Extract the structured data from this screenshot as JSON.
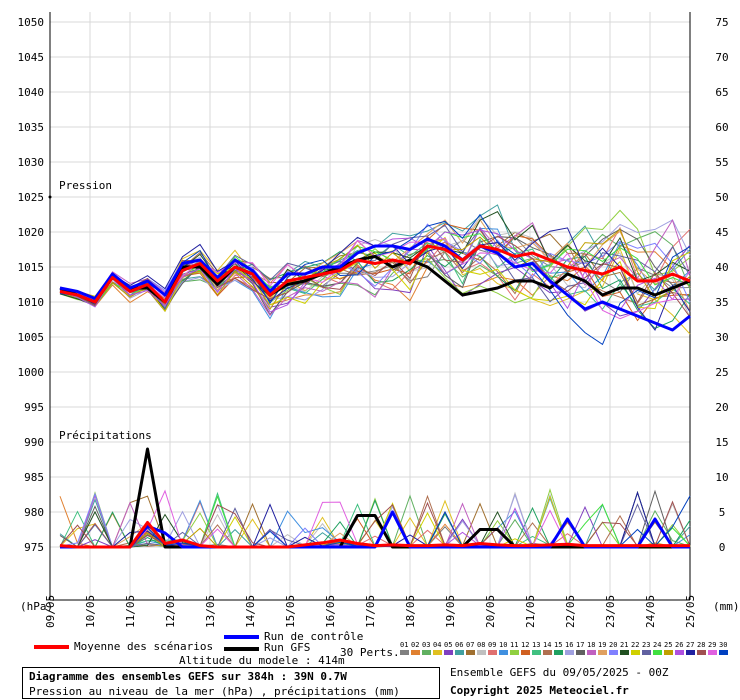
{
  "chart_data": {
    "type": "line",
    "x_tick_labels": [
      "09/05",
      "10/05",
      "11/05",
      "12/05",
      "13/05",
      "14/05",
      "15/05",
      "16/05",
      "17/05",
      "18/05",
      "19/05",
      "20/05",
      "21/05",
      "22/05",
      "23/05",
      "24/05",
      "25/05"
    ],
    "left_axis": {
      "label": "(hPa)",
      "ticks": [
        975,
        980,
        985,
        990,
        995,
        1000,
        1005,
        1010,
        1015,
        1020,
        1025,
        1030,
        1035,
        1040,
        1045,
        1050
      ]
    },
    "right_axis": {
      "label": "(mm)",
      "ticks": [
        0,
        5,
        10,
        15,
        20,
        25,
        30,
        35,
        40,
        45,
        50,
        55,
        60,
        65,
        70,
        75
      ]
    },
    "grid": true,
    "annotations": [
      "Pression",
      "Précipitations"
    ],
    "series": [
      {
        "name": "Moyenne des scénarios",
        "color": "#ff0000",
        "panel": "pressure",
        "values": [
          1011.5,
          1011,
          1010,
          1013.5,
          1011.5,
          1012.5,
          1010,
          1014.5,
          1015.5,
          1013,
          1015,
          1014,
          1011,
          1013,
          1013.5,
          1014,
          1014.5,
          1016,
          1015.5,
          1016,
          1015.5,
          1018,
          1017.5,
          1016,
          1018,
          1017.5,
          1016.5,
          1017,
          1016,
          1015,
          1014.5,
          1014,
          1015,
          1013,
          1013,
          1014,
          1013
        ]
      },
      {
        "name": "Run de contrôle",
        "color": "#0000ff",
        "panel": "pressure",
        "values": [
          1012,
          1011.5,
          1010.5,
          1014,
          1012,
          1013,
          1011,
          1015.5,
          1016,
          1013.5,
          1016,
          1014.5,
          1011.5,
          1014,
          1014,
          1015,
          1015,
          1017,
          1018,
          1018,
          1017.5,
          1019,
          1018,
          1016,
          1018,
          1017,
          1015,
          1015.5,
          1013,
          1011,
          1009,
          1010,
          1009,
          1008,
          1007,
          1006,
          1008
        ]
      },
      {
        "name": "Run GFS",
        "color": "#000000",
        "panel": "pressure",
        "values": [
          1012,
          1011,
          1010,
          1013.5,
          1012,
          1012,
          1010,
          1015,
          1015,
          1012.5,
          1015,
          1014,
          1011,
          1012.5,
          1013,
          1014,
          1015,
          1016,
          1016.5,
          1015,
          1016,
          1015,
          1013,
          1011,
          1011.5,
          1012,
          1013,
          1013,
          1012,
          1014,
          1013,
          1011,
          1012,
          1012,
          1011,
          1012,
          1013
        ]
      },
      {
        "name": "Moyenne des scénarios (précipitations)",
        "color": "#ff0000",
        "panel": "precip",
        "values": [
          0.2,
          0,
          0,
          0,
          0,
          3.5,
          0.5,
          1,
          0.2,
          0,
          0,
          0,
          0,
          0,
          0.3,
          0.6,
          1,
          0.5,
          0.2,
          0.3,
          0.2,
          0.2,
          0.3,
          0.2,
          0.5,
          0.3,
          0.2,
          0.2,
          0.3,
          0.4,
          0.2,
          0.2,
          0.2,
          0.2,
          0.2,
          0.2,
          0.2
        ]
      },
      {
        "name": "Run de contrôle (précipitations)",
        "color": "#0000ff",
        "panel": "precip",
        "values": [
          0,
          0,
          0,
          0,
          0,
          3,
          2,
          0,
          0,
          0,
          0,
          0,
          0,
          0,
          0,
          0,
          0,
          0,
          0,
          5,
          0,
          0,
          0,
          0,
          0,
          0,
          0,
          0,
          0,
          4,
          0,
          0,
          0,
          0,
          4,
          0,
          0
        ]
      },
      {
        "name": "Run GFS (précipitations)",
        "color": "#000000",
        "panel": "precip",
        "values": [
          0,
          0,
          0,
          0,
          0,
          14,
          0,
          0,
          0,
          0,
          0,
          0,
          0,
          0,
          0,
          0,
          0,
          4.5,
          4.5,
          0,
          0,
          0,
          0,
          0,
          2.5,
          2.5,
          0,
          0,
          0,
          0,
          0,
          0,
          0,
          0,
          0,
          0,
          0
        ]
      }
    ],
    "perturbation_labels": [
      "01",
      "02",
      "03",
      "04",
      "05",
      "06",
      "07",
      "08",
      "09",
      "10",
      "11",
      "12",
      "13",
      "14",
      "15",
      "16",
      "17",
      "18",
      "19",
      "20",
      "21",
      "22",
      "23",
      "24",
      "25",
      "26",
      "27",
      "28",
      "29",
      "30"
    ],
    "perturbation_colors": [
      "#808080",
      "#e08030",
      "#60b060",
      "#e0c020",
      "#8040c0",
      "#40a0a0",
      "#a07030",
      "#c0c0c0",
      "#e07070",
      "#4090e0",
      "#90d040",
      "#d06020",
      "#40c080",
      "#b07050",
      "#20a060",
      "#a0a0e0",
      "#606060",
      "#c060c0",
      "#e0a060",
      "#8080ff",
      "#205020",
      "#d0d000",
      "#6060a0",
      "#40e040",
      "#c0a000",
      "#b050e0",
      "#2020a0",
      "#a05050",
      "#e060e0",
      "#0040c0"
    ]
  },
  "legend": {
    "mean_label": "Moyenne des scénarios",
    "control_label": "Run de contrôle",
    "gfs_label": "Run GFS",
    "perts_label": "30 Perts.",
    "altitude_label": "Altitude du modele : 414m",
    "mean_color": "#ff0000",
    "control_color": "#0000ff",
    "gfs_color": "#000000"
  },
  "info": {
    "title": "Diagramme des ensembles GEFS sur 384h : 39N 0.7W",
    "subtitle": "Pression au niveau de la mer (hPa) , précipitations (mm)",
    "ensemble_run": "Ensemble GEFS du 09/05/2025 - 00Z",
    "copyright": "Copyright 2025 Meteociel.fr"
  }
}
